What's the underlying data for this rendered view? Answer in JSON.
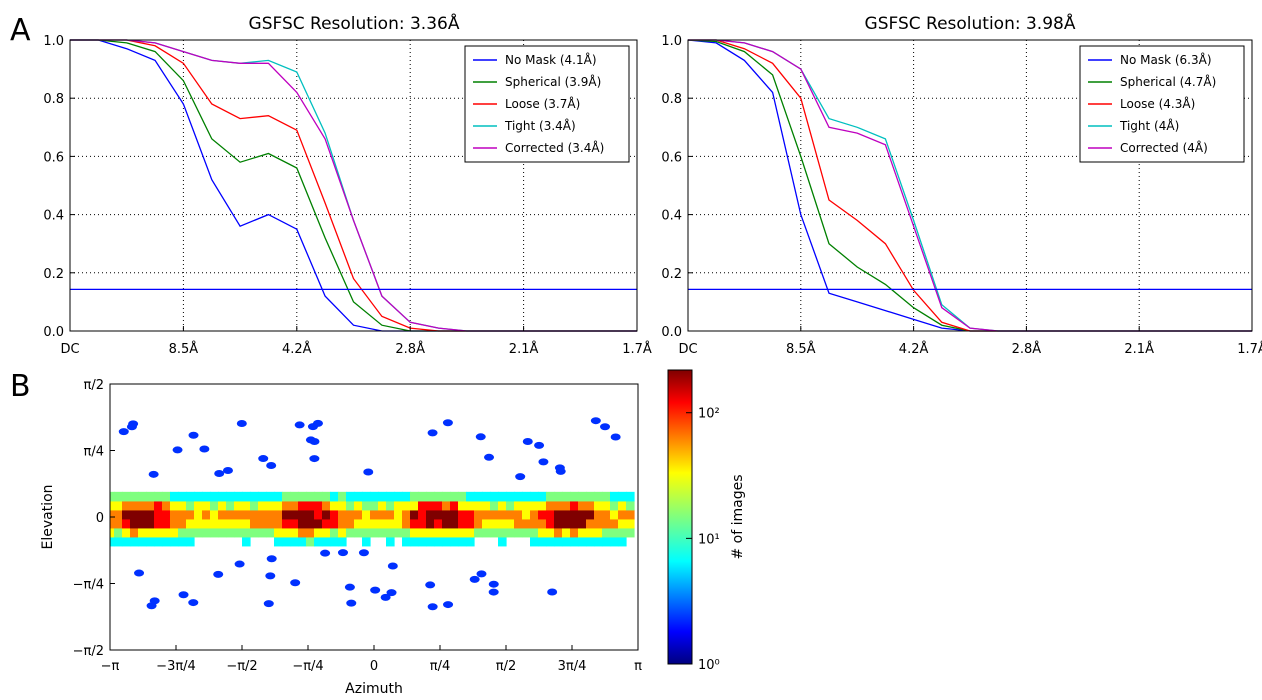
{
  "panel_labels": [
    "A",
    "B"
  ],
  "chart_data": [
    {
      "type": "line",
      "title": "GSFSC Resolution: 3.36Å",
      "xlabel": "",
      "ylabel": "",
      "x_ticks": [
        "DC",
        "8.5Å",
        "4.2Å",
        "2.8Å",
        "2.1Å",
        "1.7Å"
      ],
      "ylim": [
        0,
        1.0
      ],
      "y_ticks": [
        "0.0",
        "0.2",
        "0.4",
        "0.6",
        "0.8",
        "1.0"
      ],
      "grid": true,
      "legend_position": "top-right",
      "threshold": 0.143,
      "x": [
        0,
        0.5,
        1,
        1.5,
        2,
        2.5,
        3,
        3.5,
        4,
        4.5,
        5,
        5.5,
        6,
        6.5,
        7,
        7.5,
        8,
        8.5,
        9,
        9.5,
        10
      ],
      "series": [
        {
          "name": "No Mask (4.1Å)",
          "color": "#0000ff",
          "values": [
            1.0,
            1.0,
            0.97,
            0.93,
            0.78,
            0.52,
            0.36,
            0.4,
            0.35,
            0.12,
            0.02,
            0.0,
            0.0,
            0.0,
            0.0,
            0.0,
            0.0,
            0.0,
            0.0,
            0.0,
            0.0
          ]
        },
        {
          "name": "Spherical (3.9Å)",
          "color": "#008000",
          "values": [
            1.0,
            1.0,
            0.99,
            0.96,
            0.86,
            0.66,
            0.58,
            0.61,
            0.56,
            0.32,
            0.1,
            0.02,
            0.0,
            0.0,
            0.0,
            0.0,
            0.0,
            0.0,
            0.0,
            0.0,
            0.0
          ]
        },
        {
          "name": "Loose (3.7Å)",
          "color": "#ff0000",
          "values": [
            1.0,
            1.0,
            1.0,
            0.98,
            0.92,
            0.78,
            0.73,
            0.74,
            0.69,
            0.44,
            0.18,
            0.05,
            0.01,
            0.0,
            0.0,
            0.0,
            0.0,
            0.0,
            0.0,
            0.0,
            0.0
          ]
        },
        {
          "name": "Tight (3.4Å)",
          "color": "#00bfbf",
          "values": [
            1.0,
            1.0,
            1.0,
            0.99,
            0.96,
            0.93,
            0.92,
            0.93,
            0.89,
            0.68,
            0.38,
            0.12,
            0.03,
            0.01,
            0.0,
            0.0,
            0.0,
            0.0,
            0.0,
            0.0,
            0.0
          ]
        },
        {
          "name": "Corrected (3.4Å)",
          "color": "#bf00bf",
          "values": [
            1.0,
            1.0,
            1.0,
            0.99,
            0.96,
            0.93,
            0.92,
            0.92,
            0.82,
            0.66,
            0.38,
            0.12,
            0.03,
            0.01,
            0.0,
            0.0,
            0.0,
            0.0,
            0.0,
            0.0,
            0.0
          ]
        }
      ]
    },
    {
      "type": "line",
      "title": "GSFSC Resolution: 3.98Å",
      "xlabel": "",
      "ylabel": "",
      "x_ticks": [
        "DC",
        "8.5Å",
        "4.2Å",
        "2.8Å",
        "2.1Å",
        "1.7Å"
      ],
      "ylim": [
        0,
        1.0
      ],
      "y_ticks": [
        "0.0",
        "0.2",
        "0.4",
        "0.6",
        "0.8",
        "1.0"
      ],
      "grid": true,
      "legend_position": "top-right",
      "threshold": 0.143,
      "x": [
        0,
        0.5,
        1,
        1.5,
        2,
        2.5,
        3,
        3.5,
        4,
        4.5,
        5,
        5.5,
        6,
        6.5,
        7,
        7.5,
        8,
        8.5,
        9,
        9.5,
        10
      ],
      "series": [
        {
          "name": "No Mask (6.3Å)",
          "color": "#0000ff",
          "values": [
            1.0,
            0.99,
            0.93,
            0.82,
            0.4,
            0.13,
            0.1,
            0.07,
            0.04,
            0.01,
            0.0,
            0.0,
            0.0,
            0.0,
            0.0,
            0.0,
            0.0,
            0.0,
            0.0,
            0.0,
            0.0
          ]
        },
        {
          "name": "Spherical (4.7Å)",
          "color": "#008000",
          "values": [
            1.0,
            0.995,
            0.96,
            0.88,
            0.6,
            0.3,
            0.22,
            0.16,
            0.08,
            0.02,
            0.0,
            0.0,
            0.0,
            0.0,
            0.0,
            0.0,
            0.0,
            0.0,
            0.0,
            0.0,
            0.0
          ]
        },
        {
          "name": "Loose (4.3Å)",
          "color": "#ff0000",
          "values": [
            1.0,
            1.0,
            0.97,
            0.92,
            0.8,
            0.45,
            0.38,
            0.3,
            0.14,
            0.03,
            0.0,
            0.0,
            0.0,
            0.0,
            0.0,
            0.0,
            0.0,
            0.0,
            0.0,
            0.0,
            0.0
          ]
        },
        {
          "name": "Tight (4Å)",
          "color": "#00bfbf",
          "values": [
            1.0,
            1.0,
            0.99,
            0.96,
            0.9,
            0.73,
            0.7,
            0.66,
            0.38,
            0.09,
            0.01,
            0.0,
            0.0,
            0.0,
            0.0,
            0.0,
            0.0,
            0.0,
            0.0,
            0.0,
            0.0
          ]
        },
        {
          "name": "Corrected (4Å)",
          "color": "#bf00bf",
          "values": [
            1.0,
            1.0,
            0.99,
            0.96,
            0.9,
            0.7,
            0.68,
            0.64,
            0.36,
            0.08,
            0.01,
            0.0,
            0.0,
            0.0,
            0.0,
            0.0,
            0.0,
            0.0,
            0.0,
            0.0,
            0.0
          ]
        }
      ]
    },
    {
      "type": "heatmap",
      "xlabel": "Azimuth",
      "ylabel": "Elevation",
      "x_ticks": [
        "−π",
        "−3π/4",
        "−π/2",
        "−π/4",
        "0",
        "π/4",
        "π/2",
        "3π/4",
        "π"
      ],
      "y_ticks": [
        "−π/2",
        "−π/4",
        "0",
        "π/4",
        "π/2"
      ],
      "xlim": [
        "−π",
        "π"
      ],
      "ylim": [
        "−π/2",
        "π/2"
      ],
      "colorbar_label": "# of images",
      "colorbar_scale": "log",
      "colorbar_ticks": [
        "10⁰",
        "10¹",
        "10²"
      ],
      "density_peaks_azimuth": [
        "−7π/8",
        "−π/4",
        "π/4",
        "3π/4"
      ],
      "colormap": [
        "#00007f",
        "#0000ff",
        "#007fff",
        "#00ffff",
        "#7fff7f",
        "#ffff00",
        "#ff7f00",
        "#ff0000",
        "#7f0000"
      ]
    }
  ]
}
